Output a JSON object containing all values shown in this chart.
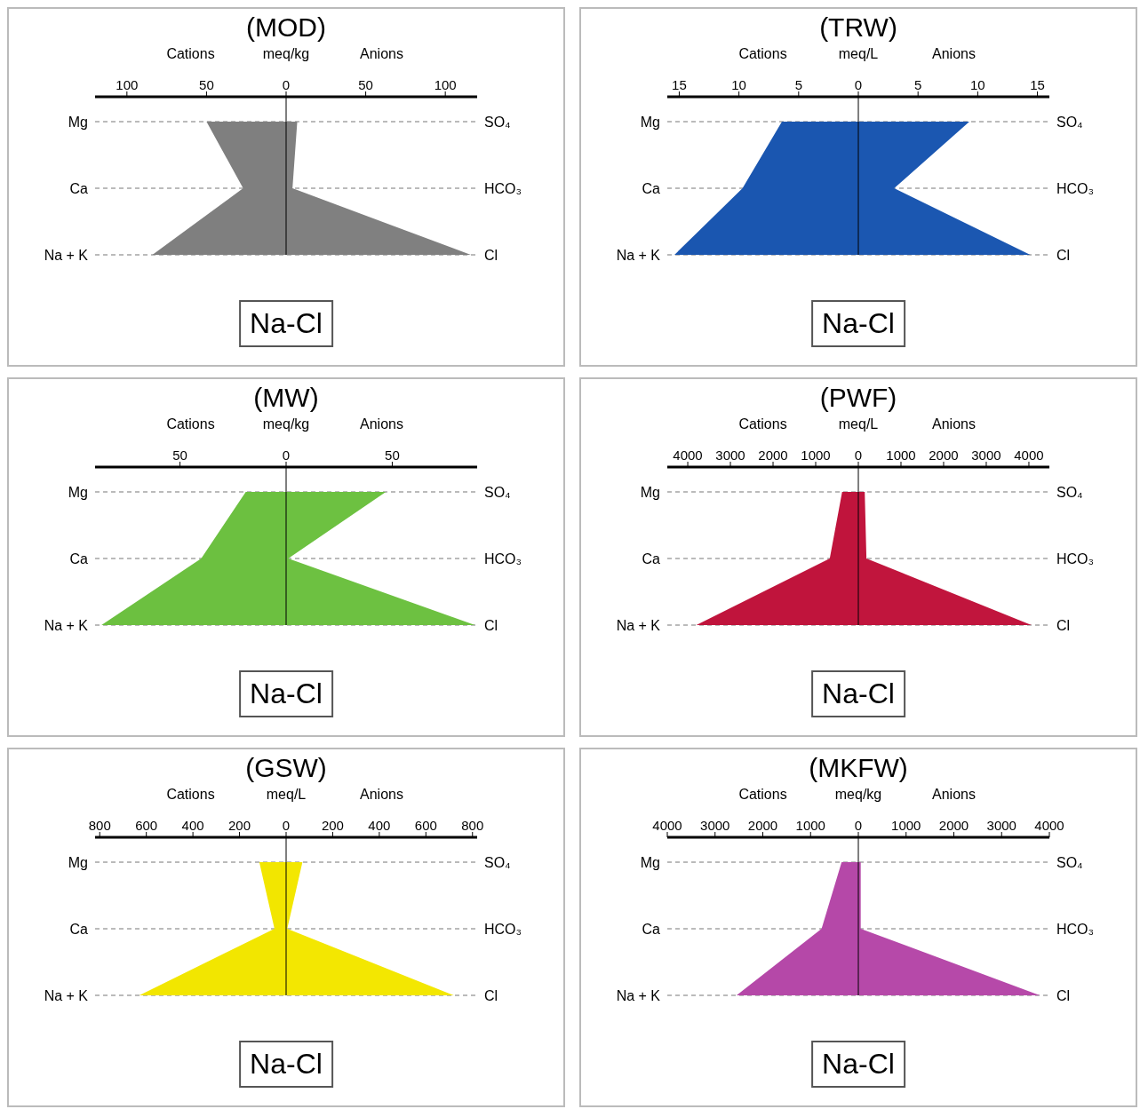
{
  "chart_data": [
    {
      "type": "area",
      "title": "(MOD)",
      "xlabel": "meq/kg",
      "annotations": [
        "Cations",
        "Anions",
        "Na-Cl"
      ],
      "orientation": "horizontal",
      "categories": [
        "Mg",
        "Ca",
        "Na + K"
      ],
      "y2_categories": [
        "SO₄",
        "HCO₃",
        "Cl"
      ],
      "xlim": [
        -120,
        120
      ],
      "xticks": [
        {
          "value": -100,
          "label": "100"
        },
        {
          "value": -50,
          "label": "50"
        },
        0,
        50,
        100
      ],
      "grid": "y",
      "ref_lines": [
        {
          "axis": "x",
          "value": 0
        }
      ],
      "series": [
        {
          "color": "#7f7f7f",
          "values": [
            -50,
            -27,
            -84
          ]
        },
        {
          "color": "#808080",
          "values": [
            7,
            4,
            116
          ]
        }
      ]
    },
    {
      "type": "area",
      "title": "(TRW)",
      "xlabel": "meq/L",
      "annotations": [
        "Cations",
        "Anions",
        "Na-Cl"
      ],
      "orientation": "horizontal",
      "categories": [
        "Mg",
        "Ca",
        "Na + K"
      ],
      "y2_categories": [
        "SO₄",
        "HCO₃",
        "Cl"
      ],
      "xlim": [
        -16,
        16
      ],
      "xticks": [
        {
          "value": -15,
          "label": "15"
        },
        {
          "value": -10,
          "label": "10"
        },
        {
          "value": -5,
          "label": "5"
        },
        0,
        5,
        10,
        15
      ],
      "grid": "y",
      "ref_lines": [
        {
          "axis": "x",
          "value": 0
        }
      ],
      "series": [
        {
          "color": "#1a56b0",
          "values": [
            -6.4,
            -9.7,
            -15.4
          ]
        },
        {
          "color": "#1b57b1",
          "values": [
            9.3,
            3,
            14.4
          ]
        }
      ]
    },
    {
      "type": "area",
      "title": "(MW)",
      "xlabel": "meq/kg",
      "annotations": [
        "Cations",
        "Anions",
        "Na-Cl"
      ],
      "orientation": "horizontal",
      "categories": [
        "Mg",
        "Ca",
        "Na + K"
      ],
      "y2_categories": [
        "SO₄",
        "HCO₃",
        "Cl"
      ],
      "xlim": [
        -90,
        90
      ],
      "xticks": [
        {
          "value": -50,
          "label": "50"
        },
        0,
        50
      ],
      "grid": "y",
      "ref_lines": [
        {
          "axis": "x",
          "value": 0
        }
      ],
      "series": [
        {
          "color": "#6cc040",
          "values": [
            -19,
            -40,
            -87
          ]
        },
        {
          "color": "#6dc141",
          "values": [
            47,
            1,
            89
          ]
        }
      ]
    },
    {
      "type": "area",
      "title": "(PWF)",
      "xlabel": "meq/L",
      "annotations": [
        "Cations",
        "Anions",
        "Na-Cl"
      ],
      "orientation": "horizontal",
      "categories": [
        "Mg",
        "Ca",
        "Na + K"
      ],
      "y2_categories": [
        "SO₄",
        "HCO₃",
        "Cl"
      ],
      "xlim": [
        -4480,
        4480
      ],
      "xticks": [
        {
          "value": -4000,
          "label": "4000"
        },
        {
          "value": -3000,
          "label": "3000"
        },
        {
          "value": -2000,
          "label": "2000"
        },
        {
          "value": -1000,
          "label": "1000"
        },
        0,
        1000,
        2000,
        3000,
        4000
      ],
      "grid": "y",
      "ref_lines": [
        {
          "axis": "x",
          "value": 0
        }
      ],
      "series": [
        {
          "color": "#c0143c",
          "values": [
            -380,
            -670,
            -3800
          ]
        },
        {
          "color": "#c1153d",
          "values": [
            150,
            190,
            4060
          ]
        }
      ]
    },
    {
      "type": "area",
      "title": "(GSW)",
      "xlabel": "meq/L",
      "annotations": [
        "Cations",
        "Anions",
        "Na-Cl"
      ],
      "orientation": "horizontal",
      "categories": [
        "Mg",
        "Ca",
        "Na + K"
      ],
      "y2_categories": [
        "SO₄",
        "HCO₃",
        "Cl"
      ],
      "xlim": [
        -820,
        820
      ],
      "xticks": [
        {
          "value": -800,
          "label": "800"
        },
        {
          "value": -600,
          "label": "600"
        },
        {
          "value": -400,
          "label": "400"
        },
        {
          "value": -200,
          "label": "200"
        },
        0,
        200,
        400,
        600,
        800
      ],
      "grid": "y",
      "ref_lines": [
        {
          "axis": "x",
          "value": 0
        }
      ],
      "series": [
        {
          "color": "#f2e600",
          "values": [
            -115,
            -50,
            -630
          ]
        },
        {
          "color": "#f3e701",
          "values": [
            70,
            5,
            720
          ]
        }
      ]
    },
    {
      "type": "area",
      "title": "(MKFW)",
      "xlabel": "meq/kg",
      "annotations": [
        "Cations",
        "Anions",
        "Na-Cl"
      ],
      "orientation": "horizontal",
      "categories": [
        "Mg",
        "Ca",
        "Na + K"
      ],
      "y2_categories": [
        "SO₄",
        "HCO₃",
        "Cl"
      ],
      "xlim": [
        -4000,
        4000
      ],
      "xticks": [
        {
          "value": -4000,
          "label": "4000"
        },
        {
          "value": -3000,
          "label": "3000"
        },
        {
          "value": -2000,
          "label": "2000"
        },
        {
          "value": -1000,
          "label": "1000"
        },
        0,
        1000,
        2000,
        3000,
        4000
      ],
      "grid": "y",
      "ref_lines": [
        {
          "axis": "x",
          "value": 0
        }
      ],
      "series": [
        {
          "color": "#b548a8",
          "values": [
            -350,
            -770,
            -2550
          ]
        },
        {
          "color": "#b649a9",
          "values": [
            50,
            50,
            3800
          ]
        }
      ]
    }
  ]
}
